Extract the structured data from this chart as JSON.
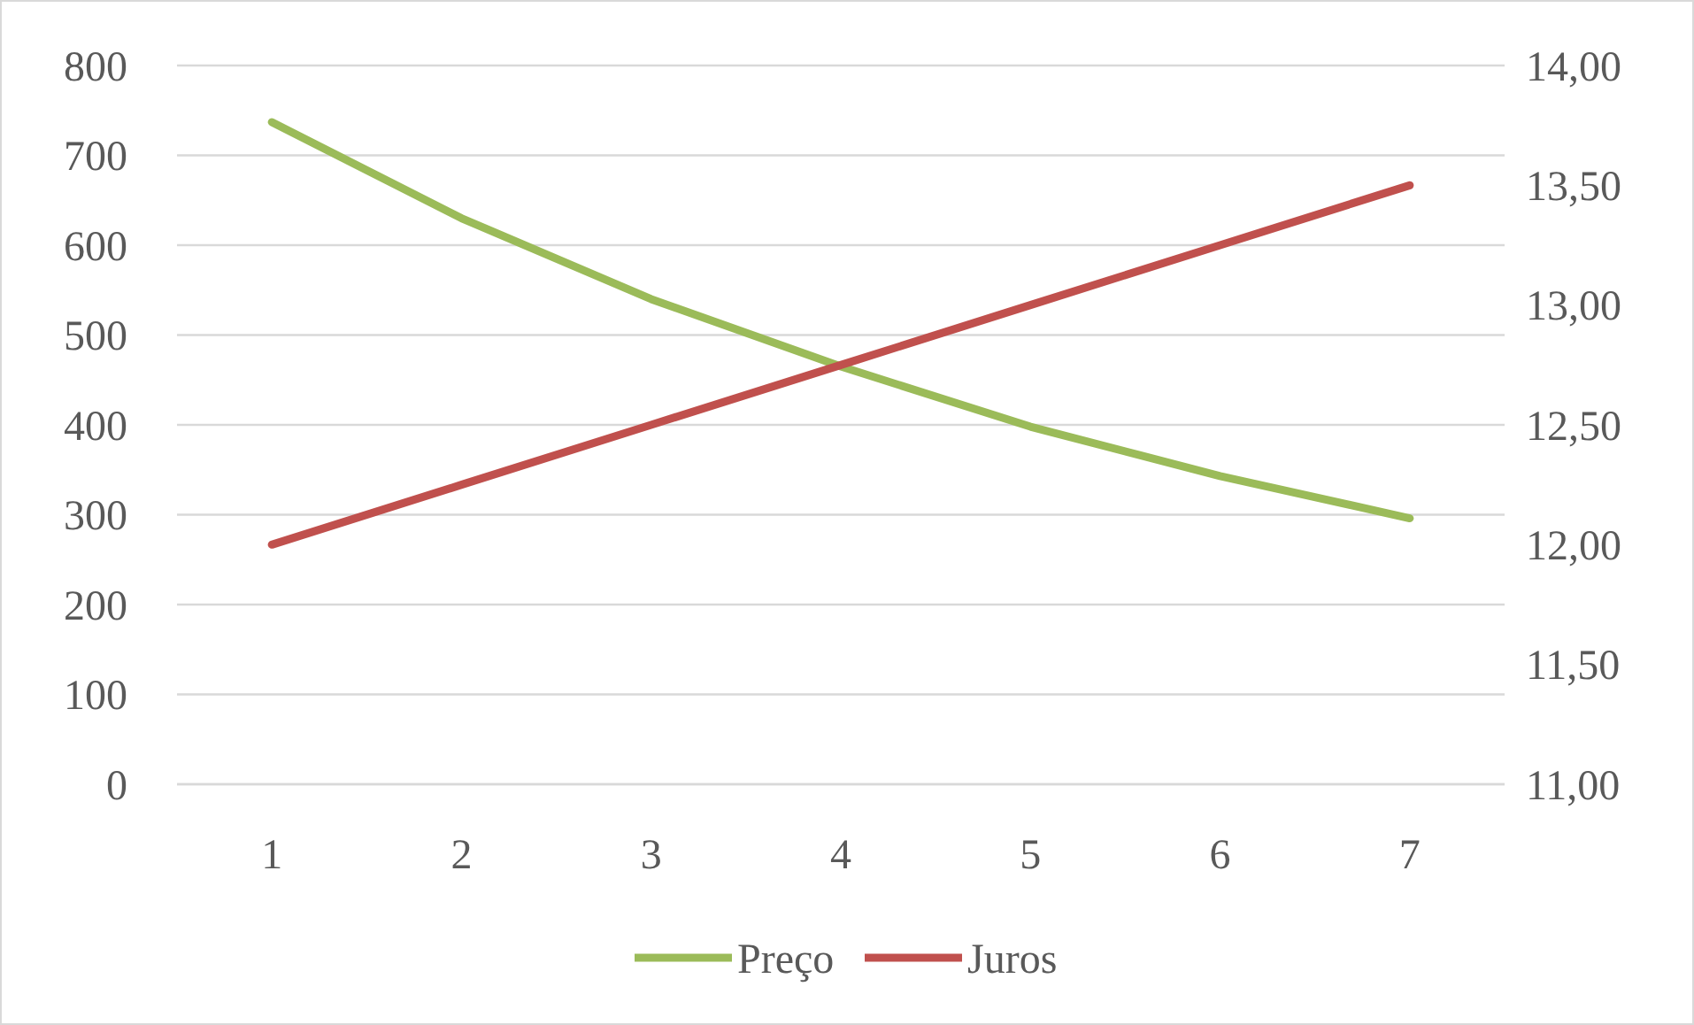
{
  "chart_data": {
    "type": "line",
    "categories": [
      "1",
      "2",
      "3",
      "4",
      "5",
      "6",
      "7"
    ],
    "series": [
      {
        "name": "Preço",
        "color": "#9bbb59",
        "values": [
          737,
          630,
          540,
          465,
          398,
          343,
          296
        ]
      },
      {
        "name": "Juros",
        "color": "#c0504d",
        "axis": "y2",
        "values": [
          12,
          12.25,
          12.5,
          12.75,
          13,
          13.25,
          13.5
        ]
      }
    ],
    "ylim": [
      0,
      800
    ],
    "yticks": [
      0,
      100,
      200,
      300,
      400,
      500,
      600,
      700,
      800
    ],
    "y2lim": [
      11,
      14
    ],
    "y2ticks": [
      {
        "value": 11,
        "label": "11,00"
      },
      {
        "value": 11.5,
        "label": "11,50"
      },
      {
        "value": 12,
        "label": "12,00"
      },
      {
        "value": 12.5,
        "label": "12,50"
      },
      {
        "value": 13,
        "label": "13,00"
      },
      {
        "value": 13.5,
        "label": "13,50"
      },
      {
        "value": 14,
        "label": "14,00"
      }
    ],
    "grid": "y",
    "legend": "bottom",
    "marker": "none",
    "line_style": "solid"
  }
}
